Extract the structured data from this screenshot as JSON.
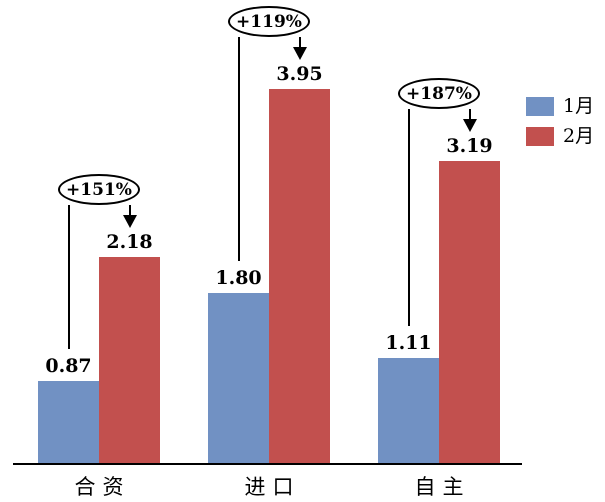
{
  "chart_data": {
    "type": "bar",
    "title": "",
    "xlabel": "",
    "ylabel": "",
    "categories": [
      "合资",
      "进口",
      "自主"
    ],
    "series": [
      {
        "name": "1月",
        "color": "#7191C3",
        "values": [
          0.87,
          1.8,
          1.11
        ]
      },
      {
        "name": "2月",
        "color": "#C2504E",
        "values": [
          2.18,
          3.95,
          3.19
        ]
      }
    ],
    "growth_annotations": [
      "+151%",
      "+119%",
      "+187%"
    ],
    "value_label_decimals": 2,
    "ylim": [
      0,
      4.4
    ],
    "grid": false,
    "legend_position": "right",
    "axis_color": "#000000",
    "text_color": "#000000",
    "annotation_style": "oval-callout-with-arrow"
  }
}
